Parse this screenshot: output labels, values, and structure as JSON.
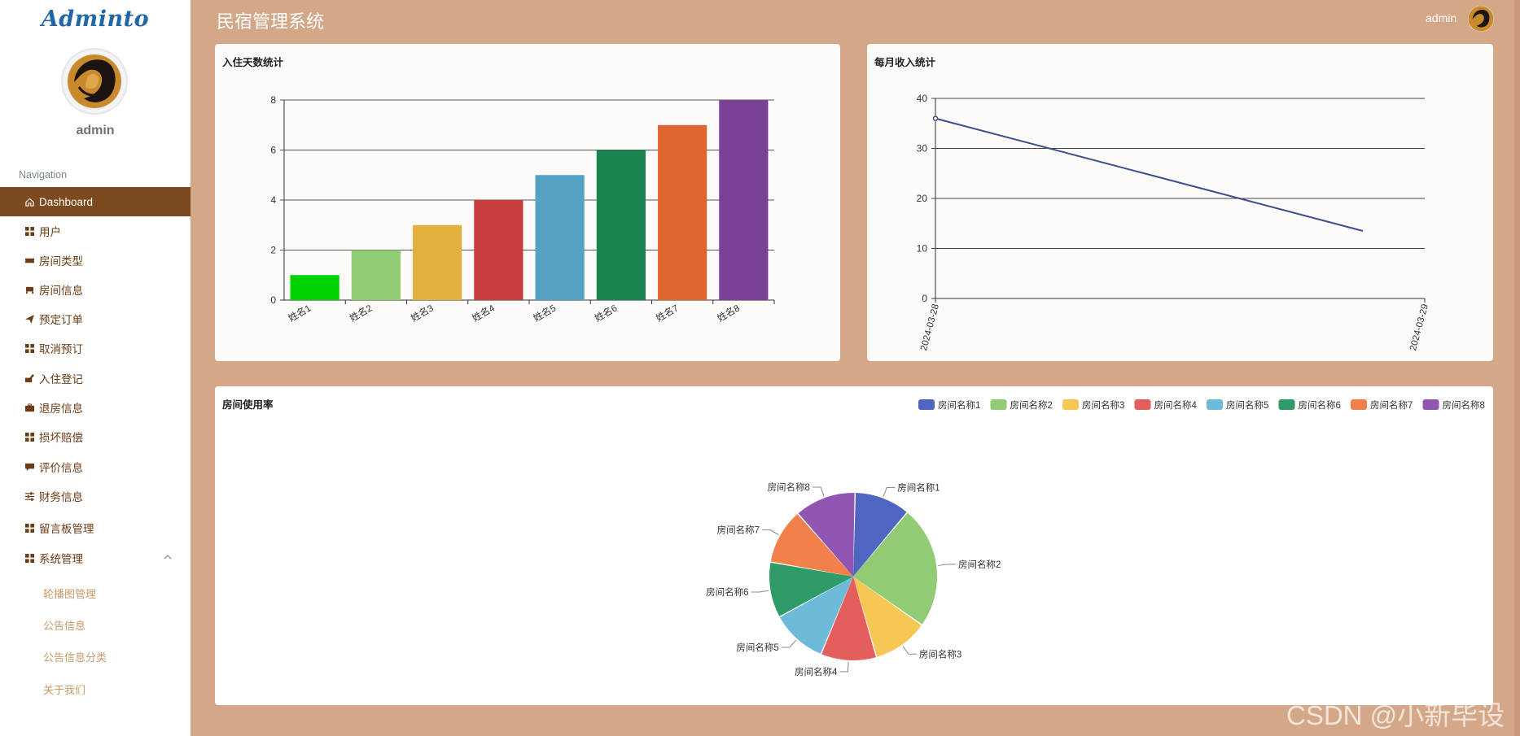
{
  "app": {
    "logo": "Adminto",
    "title": "民宿管理系统",
    "user": "admin"
  },
  "sidebar": {
    "user": "admin",
    "nav_title": "Navigation",
    "items": [
      {
        "label": "Dashboard",
        "icon": "home-icon",
        "active": true
      },
      {
        "label": "用户",
        "icon": "grid-icon"
      },
      {
        "label": "房间类型",
        "icon": "ticket-icon"
      },
      {
        "label": "房间信息",
        "icon": "bed-icon"
      },
      {
        "label": "预定订单",
        "icon": "send-icon"
      },
      {
        "label": "取消预订",
        "icon": "grid-icon"
      },
      {
        "label": "入住登记",
        "icon": "checkin-icon"
      },
      {
        "label": "退房信息",
        "icon": "briefcase-icon"
      },
      {
        "label": "损坏赔偿",
        "icon": "grid-icon"
      },
      {
        "label": "评价信息",
        "icon": "comment-icon"
      },
      {
        "label": "财务信息",
        "icon": "sliders-icon"
      },
      {
        "label": "留言板管理",
        "icon": "grid-icon"
      },
      {
        "label": "系统管理",
        "icon": "grid-icon",
        "expanded": true
      }
    ],
    "sub_items": [
      "轮播图管理",
      "公告信息",
      "公告信息分类",
      "关于我们"
    ]
  },
  "cards": {
    "checkin_title": "入住天数统计",
    "income_title": "每月收入统计",
    "usage_title": "房间使用率"
  },
  "chart_data": [
    {
      "type": "bar",
      "title": "入住天数统计",
      "categories": [
        "姓名1",
        "姓名2",
        "姓名3",
        "姓名4",
        "姓名5",
        "姓名6",
        "姓名7",
        "姓名8"
      ],
      "values": [
        1,
        2,
        3,
        4,
        5,
        6,
        7,
        8
      ],
      "ylim": [
        0,
        8
      ],
      "yticks": [
        0,
        2,
        4,
        6,
        8
      ],
      "colors": [
        "#00d100",
        "#91cb74",
        "#e3b040",
        "#c73c3c",
        "#55a1c4",
        "#198450",
        "#e06630",
        "#7a4096"
      ],
      "grid": true
    },
    {
      "type": "line",
      "title": "每月收入统计",
      "x": [
        "2024-03-28",
        "2024-03-29"
      ],
      "values": [
        36,
        13.5
      ],
      "ylim": [
        0,
        40
      ],
      "yticks": [
        0,
        10,
        20,
        30,
        40
      ],
      "color": "#3b4f8f",
      "grid": true
    },
    {
      "type": "pie",
      "title": "房间使用率",
      "labels": [
        "房间名称1",
        "房间名称2",
        "房间名称3",
        "房间名称4",
        "房间名称5",
        "房间名称6",
        "房间名称7",
        "房间名称8"
      ],
      "values": [
        10,
        22,
        10,
        10,
        10,
        10,
        10,
        11
      ],
      "colors": [
        "#4f66c0",
        "#91cb74",
        "#f7c755",
        "#e55e5e",
        "#6ebad9",
        "#2f9b69",
        "#f2804a",
        "#9156b2"
      ],
      "legend": "top-right"
    }
  ],
  "watermark": "CSDN @小新毕设"
}
